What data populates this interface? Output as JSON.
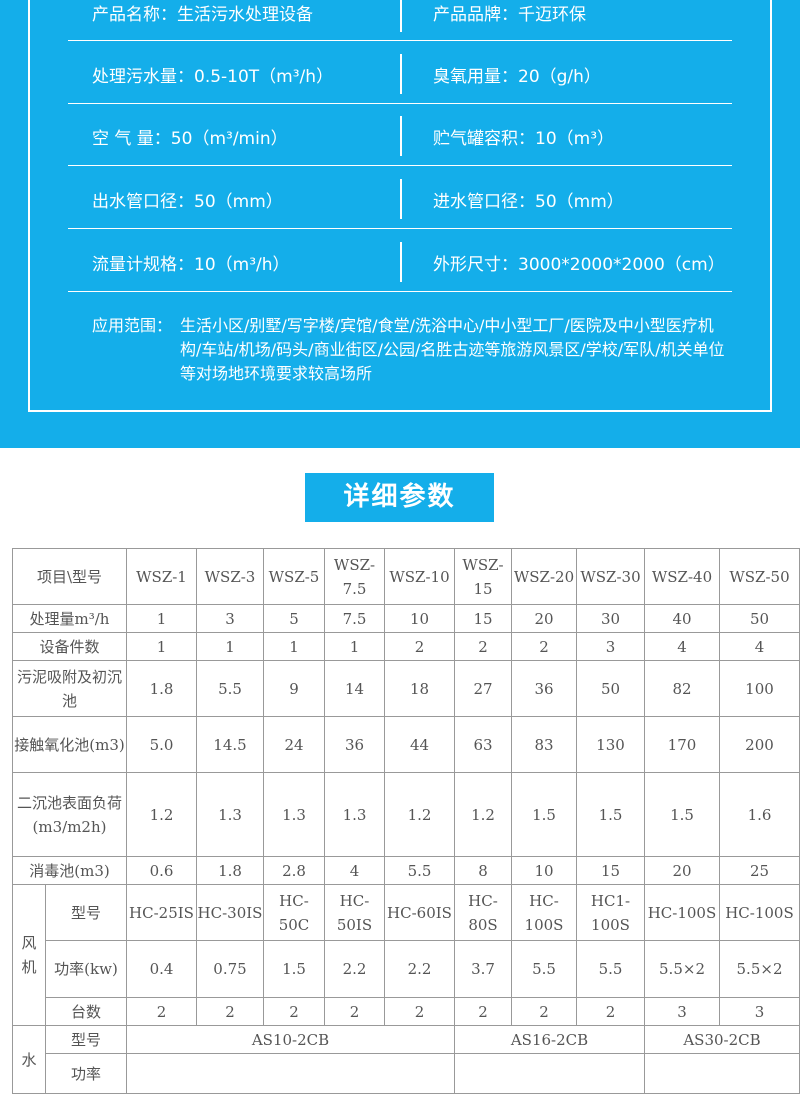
{
  "specs": [
    [
      "产品名称：生活污水处理设备",
      "产品品牌：千迈环保"
    ],
    [
      "处理污水量：0.5-10T（m³/h）",
      "臭氧用量：20（g/h）"
    ],
    [
      "空 气 量：50（m³/min）",
      "贮气罐容积：10（m³）"
    ],
    [
      "出水管口径：50（mm）",
      "进水管口径：50（mm）"
    ],
    [
      "流量计规格：10（m³/h）",
      "外形尺寸：3000*2000*2000（cm）"
    ]
  ],
  "application": {
    "label": "应用范围：",
    "value": "生活小区/别墅/写字楼/宾馆/食堂/洗浴中心/中小型工厂/医院及中小型医疗机构/车站/机场/码头/商业街区/公园/名胜古迹等旅游风景区/学校/军队/机关单位等对场地环境要求较高场所"
  },
  "section_title": "详细参数",
  "table": {
    "header": [
      "项目\\型号",
      "WSZ-1",
      "WSZ-3",
      "WSZ-5",
      "WSZ-7.5",
      "WSZ-10",
      "WSZ-15",
      "WSZ-20",
      "WSZ-30",
      "WSZ-40",
      "WSZ-50"
    ],
    "rows": [
      [
        "处理量m³/h",
        "1",
        "3",
        "5",
        "7.5",
        "10",
        "15",
        "20",
        "30",
        "40",
        "50"
      ],
      [
        "设备件数",
        "1",
        "1",
        "1",
        "1",
        "2",
        "2",
        "2",
        "3",
        "4",
        "4"
      ],
      [
        "污泥吸附及初沉池",
        "1.8",
        "5.5",
        "9",
        "14",
        "18",
        "27",
        "36",
        "50",
        "82",
        "100"
      ],
      [
        "接触氧化池(m3)",
        "5.0",
        "14.5",
        "24",
        "36",
        "44",
        "63",
        "83",
        "130",
        "170",
        "200"
      ],
      [
        "二沉池表面负荷(m3/m2h)",
        "1.2",
        "1.3",
        "1.3",
        "1.3",
        "1.2",
        "1.2",
        "1.5",
        "1.5",
        "1.5",
        "1.6"
      ],
      [
        "消毒池(m3)",
        "0.6",
        "1.8",
        "2.8",
        "4",
        "5.5",
        "8",
        "10",
        "15",
        "20",
        "25"
      ]
    ],
    "blower": {
      "group": "风机",
      "rows": [
        [
          "型号",
          "HC-25IS",
          "HC-30IS",
          "HC-50C",
          "HC-50IS",
          "HC-60IS",
          "HC-80S",
          "HC-100S",
          "HC1-100S",
          "HC-100S",
          "HC-100S"
        ],
        [
          "功率(kw)",
          "0.4",
          "0.75",
          "1.5",
          "2.2",
          "2.2",
          "3.7",
          "5.5",
          "5.5",
          "5.5×2",
          "5.5×2"
        ],
        [
          "台数",
          "2",
          "2",
          "2",
          "2",
          "2",
          "2",
          "2",
          "2",
          "3",
          "3"
        ]
      ]
    },
    "pump": {
      "group": "水",
      "model_label": "型号",
      "models": [
        "AS10-2CB",
        "AS16-2CB",
        "AS30-2CB"
      ],
      "power_label": "功率"
    }
  }
}
